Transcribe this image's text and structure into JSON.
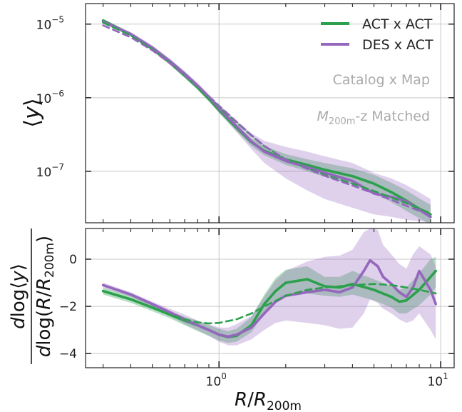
{
  "colors": {
    "act": "#2ca04c",
    "des": "#9467bd",
    "act_band": "#2ca04c",
    "des_band": "#9467bd",
    "grid": "#c8c8c8",
    "annotation": "#aaaaaa"
  },
  "chart_data": [
    {
      "type": "line",
      "panel": "top",
      "ylabel_symbol": "y",
      "xscale": "log",
      "yscale": "log",
      "xlim": [
        0.25,
        11.5
      ],
      "ylim": [
        2e-08,
        1.9e-05
      ],
      "x_ticks": [
        {
          "value": 1,
          "base": "10",
          "exp": "0"
        },
        {
          "value": 10,
          "base": "10",
          "exp": "1"
        }
      ],
      "y_ticks": [
        {
          "value": 1e-07,
          "base": "10",
          "exp": "−7"
        },
        {
          "value": 1e-06,
          "base": "10",
          "exp": "−6"
        },
        {
          "value": 1e-05,
          "base": "10",
          "exp": "−5"
        }
      ],
      "grid": true,
      "legend": {
        "placement": "top-right",
        "entries": [
          {
            "label": "ACT x ACT",
            "series": "act"
          },
          {
            "label": "DES x ACT",
            "series": "des"
          }
        ]
      },
      "annotations": {
        "line1": "Catalog x Map",
        "line2_sym": "M",
        "line2_sub": "200m",
        "line2_rest": "-z Matched"
      },
      "series": [
        {
          "key": "act",
          "style": "solid",
          "x": [
            0.3,
            0.4,
            0.5,
            0.6,
            0.7,
            0.8,
            0.9,
            1.0,
            1.2,
            1.4,
            1.6,
            2.0,
            2.5,
            3.0,
            4.0,
            5.0,
            6.0,
            7.0,
            8.0,
            9.0
          ],
          "y": [
            1.12e-05,
            7.2e-06,
            4.6e-06,
            3e-06,
            2e-06,
            1.38e-06,
            9.6e-07,
            6.8e-07,
            3.9e-07,
            2.5e-07,
            1.9e-07,
            1.45e-07,
            1.22e-07,
            1.05e-07,
            8.6e-08,
            6.8e-08,
            5.2e-08,
            4e-08,
            3.1e-08,
            2.6e-08
          ],
          "band_lo": [
            1.06e-05,
            6.8e-06,
            4.35e-06,
            2.8e-06,
            1.85e-06,
            1.28e-06,
            8.9e-07,
            6.2e-07,
            3.5e-07,
            2.2e-07,
            1.65e-07,
            1.22e-07,
            1e-07,
            8.4e-08,
            6.6e-08,
            5.1e-08,
            3.8e-08,
            2.9e-08,
            2.3e-08,
            1.9e-08
          ],
          "band_hi": [
            1.18e-05,
            7.6e-06,
            4.85e-06,
            3.2e-06,
            2.15e-06,
            1.48e-06,
            1.03e-06,
            7.4e-07,
            4.3e-07,
            2.8e-07,
            2.2e-07,
            1.72e-07,
            1.46e-07,
            1.3e-07,
            1.1e-07,
            9e-08,
            7e-08,
            5.5e-08,
            4.3e-08,
            3.5e-08
          ]
        },
        {
          "key": "des",
          "style": "solid",
          "x": [
            0.3,
            0.4,
            0.5,
            0.6,
            0.7,
            0.8,
            0.9,
            1.0,
            1.2,
            1.4,
            1.6,
            2.0,
            2.5,
            3.0,
            4.0,
            5.0,
            6.0,
            7.0,
            8.0,
            9.0
          ],
          "y": [
            1.08e-05,
            7.3e-06,
            4.8e-06,
            3.15e-06,
            2.12e-06,
            1.46e-06,
            1.02e-06,
            7.2e-07,
            4.1e-07,
            2.55e-07,
            1.85e-07,
            1.38e-07,
            1.14e-07,
            9.6e-08,
            7.4e-08,
            5e-08,
            4.5e-08,
            3.9e-08,
            3e-08,
            2.4e-08
          ],
          "band_lo": [
            1e-05,
            6.8e-06,
            4.45e-06,
            2.9e-06,
            1.95e-06,
            1.33e-06,
            9.2e-07,
            6.3e-07,
            3.4e-07,
            2e-07,
            1.3e-07,
            8e-08,
            5.5e-08,
            4.2e-08,
            3.2e-08,
            2.6e-08,
            2.4e-08,
            2.2e-08,
            2.1e-08,
            2e-08
          ],
          "band_hi": [
            1.16e-05,
            7.8e-06,
            5.15e-06,
            3.4e-06,
            2.3e-06,
            1.6e-06,
            1.12e-06,
            8.1e-07,
            4.9e-07,
            3.3e-07,
            2.6e-07,
            2.15e-07,
            1.85e-07,
            1.6e-07,
            1.3e-07,
            9.5e-08,
            8e-08,
            6.5e-08,
            5.2e-08,
            4.2e-08
          ]
        },
        {
          "key": "act_fit",
          "style": "dashed",
          "x": [
            0.3,
            0.4,
            0.5,
            0.6,
            0.7,
            0.8,
            0.9,
            1.0,
            1.2,
            1.4,
            1.6,
            2.0,
            2.5,
            3.0,
            4.0,
            5.0,
            6.0,
            7.0,
            8.0,
            9.0
          ],
          "y": [
            1.05e-05,
            7e-06,
            4.55e-06,
            3e-06,
            2.02e-06,
            1.42e-06,
            1.02e-06,
            7.6e-07,
            4.6e-07,
            3.05e-07,
            2.2e-07,
            1.45e-07,
            1.1e-07,
            9e-08,
            6.8e-08,
            5.4e-08,
            4.4e-08,
            3.7e-08,
            3.1e-08,
            2.7e-08
          ]
        },
        {
          "key": "des_fit",
          "style": "dashed",
          "x": [
            0.3,
            0.4,
            0.5,
            0.6,
            0.7,
            0.8,
            0.9,
            1.0,
            1.2,
            1.4,
            1.6,
            2.0,
            2.5,
            3.0,
            4.0,
            5.0,
            6.0,
            7.0,
            8.0,
            9.0
          ],
          "y": [
            9.6e-06,
            6.6e-06,
            4.4e-06,
            2.95e-06,
            2.02e-06,
            1.43e-06,
            1.04e-06,
            7.8e-07,
            4.7e-07,
            3.1e-07,
            2.22e-07,
            1.45e-07,
            1.08e-07,
            8.7e-08,
            6.4e-08,
            5e-08,
            4.1e-08,
            3.4e-08,
            2.9e-08,
            2.5e-08
          ]
        }
      ]
    },
    {
      "type": "line",
      "panel": "bottom",
      "xlabel_sym": "R",
      "xlabel_sep": "/",
      "xlabel_sub": "200m",
      "ylabel_num_prefix": "d",
      "ylabel_num_fn": "log",
      "ylabel_num_sym": "y",
      "ylabel_den_prefix": "d",
      "ylabel_den_fn": "log",
      "ylabel_den_sym": "R",
      "ylabel_den_sub": "200m",
      "xscale": "log",
      "yscale": "linear",
      "xlim": [
        0.25,
        11.5
      ],
      "ylim": [
        -4.6,
        1.3
      ],
      "y_ticks": [
        {
          "value": -4,
          "label": "−4"
        },
        {
          "value": -2,
          "label": "−2"
        },
        {
          "value": 0,
          "label": "0"
        }
      ],
      "grid": true,
      "series": [
        {
          "key": "act",
          "style": "solid",
          "x": [
            0.3,
            0.4,
            0.5,
            0.6,
            0.7,
            0.8,
            0.9,
            1.0,
            1.1,
            1.2,
            1.4,
            1.6,
            1.8,
            2.0,
            2.5,
            3.0,
            3.5,
            4.0,
            5.0,
            6.0,
            6.5,
            7.0,
            8.0,
            9.0,
            9.5
          ],
          "y": [
            -1.35,
            -1.7,
            -2.05,
            -2.35,
            -2.6,
            -2.8,
            -3.0,
            -3.2,
            -3.3,
            -3.25,
            -2.8,
            -1.9,
            -1.35,
            -1.0,
            -0.85,
            -1.15,
            -1.2,
            -1.05,
            -1.3,
            -1.6,
            -1.8,
            -1.75,
            -1.3,
            -0.75,
            -0.5
          ],
          "band_lo": [
            -1.5,
            -1.85,
            -2.2,
            -2.5,
            -2.8,
            -3.05,
            -3.25,
            -3.45,
            -3.55,
            -3.5,
            -3.1,
            -2.3,
            -1.8,
            -1.5,
            -1.45,
            -1.55,
            -1.6,
            -1.5,
            -1.75,
            -2.05,
            -2.3,
            -2.3,
            -1.95,
            -1.5,
            -1.2
          ],
          "band_hi": [
            -1.2,
            -1.55,
            -1.9,
            -2.2,
            -2.45,
            -2.6,
            -2.8,
            -2.95,
            -3.05,
            -2.95,
            -2.45,
            -1.5,
            -0.8,
            -0.45,
            -0.3,
            -0.75,
            -0.75,
            -0.5,
            -0.85,
            -1.15,
            -1.3,
            -1.2,
            -0.6,
            0.0,
            0.1
          ]
        },
        {
          "key": "des",
          "style": "solid",
          "x": [
            0.3,
            0.4,
            0.5,
            0.6,
            0.7,
            0.8,
            0.9,
            1.0,
            1.1,
            1.2,
            1.4,
            1.6,
            1.8,
            2.0,
            2.5,
            3.0,
            3.5,
            4.0,
            4.5,
            4.8,
            5.2,
            5.5,
            6.0,
            6.5,
            7.0,
            7.5,
            8.0,
            9.0,
            9.5
          ],
          "y": [
            -1.1,
            -1.5,
            -1.9,
            -2.25,
            -2.55,
            -2.8,
            -3.0,
            -3.2,
            -3.28,
            -3.2,
            -2.9,
            -2.3,
            -1.8,
            -1.55,
            -1.4,
            -1.3,
            -1.4,
            -1.2,
            -0.5,
            -0.05,
            -0.3,
            -0.75,
            -1.05,
            -1.4,
            -1.6,
            -1.2,
            -0.5,
            -1.3,
            -1.9
          ],
          "band_lo": [
            -1.2,
            -1.6,
            -2.0,
            -2.4,
            -2.75,
            -3.0,
            -3.25,
            -3.5,
            -3.65,
            -3.65,
            -3.4,
            -3.0,
            -2.7,
            -2.6,
            -2.7,
            -2.8,
            -2.95,
            -2.9,
            -2.3,
            -1.7,
            -1.85,
            -2.1,
            -2.3,
            -2.55,
            -2.7,
            -2.6,
            -2.3,
            -3.0,
            -3.4
          ],
          "band_hi": [
            -1.0,
            -1.4,
            -1.8,
            -2.1,
            -2.35,
            -2.6,
            -2.75,
            -2.9,
            -2.9,
            -2.75,
            -2.4,
            -1.6,
            -0.9,
            -0.5,
            -0.1,
            0.1,
            0.15,
            0.4,
            1.15,
            1.3,
            1.25,
            0.6,
            0.2,
            -0.2,
            -0.4,
            0.2,
            0.55,
            0.2,
            -0.3
          ]
        },
        {
          "key": "act_fit",
          "style": "dashed",
          "x": [
            0.3,
            0.4,
            0.5,
            0.6,
            0.7,
            0.8,
            0.9,
            1.0,
            1.2,
            1.4,
            1.6,
            2.0,
            2.5,
            3.0,
            4.0,
            5.0,
            6.0,
            7.0,
            8.0,
            9.0,
            9.5
          ],
          "y": [
            -1.35,
            -1.7,
            -2.05,
            -2.35,
            -2.55,
            -2.68,
            -2.72,
            -2.7,
            -2.55,
            -2.3,
            -2.0,
            -1.55,
            -1.3,
            -1.2,
            -1.1,
            -1.05,
            -1.1,
            -1.2,
            -1.3,
            -1.4,
            -1.45
          ]
        }
      ]
    }
  ]
}
